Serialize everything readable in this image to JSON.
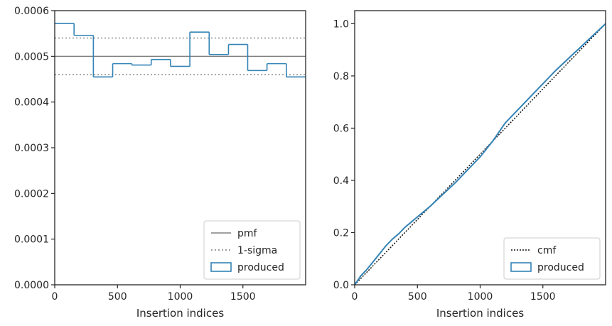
{
  "chart_data": [
    {
      "type": "line",
      "xlabel": "Insertion indices",
      "ylabel": "",
      "xlim": [
        0,
        2000
      ],
      "ylim": [
        0,
        0.0006
      ],
      "xticks": [
        "0",
        "500",
        "1000",
        "1500"
      ],
      "xtick_values": [
        0,
        500,
        1000,
        1500
      ],
      "yticks": [
        "0.0000",
        "0.0001",
        "0.0002",
        "0.0003",
        "0.0004",
        "0.0005",
        "0.0006"
      ],
      "ytick_values": [
        0,
        0.0001,
        0.0002,
        0.0003,
        0.0004,
        0.0005,
        0.0006
      ],
      "grid": false,
      "legend_position": "bottom-right",
      "legend": [
        "pmf",
        "1-sigma",
        "produced"
      ],
      "pmf": 0.0005,
      "sigma_band": [
        0.00046,
        0.00054
      ],
      "histogram": {
        "name": "produced",
        "bin_edges": [
          0,
          154,
          308,
          462,
          615,
          769,
          923,
          1077,
          1231,
          1385,
          1538,
          1692,
          1846,
          2000
        ],
        "values": [
          0.000572,
          0.000546,
          0.000455,
          0.000484,
          0.000481,
          0.000493,
          0.000478,
          0.000553,
          0.000504,
          0.000526,
          0.000469,
          0.000484,
          0.000455
        ]
      },
      "colors": {
        "pmf": "#808080",
        "sigma": "#808080",
        "produced": "#3383b6"
      }
    },
    {
      "type": "line",
      "xlabel": "Insertion indices",
      "ylabel": "",
      "xlim": [
        0,
        2000
      ],
      "ylim": [
        0,
        1.05
      ],
      "xticks": [
        "0",
        "500",
        "1000",
        "1500"
      ],
      "xtick_values": [
        0,
        500,
        1000,
        1500
      ],
      "yticks": [
        "0.0",
        "0.2",
        "0.4",
        "0.6",
        "0.8",
        "1.0"
      ],
      "ytick_values": [
        0,
        0.2,
        0.4,
        0.6,
        0.8,
        1.0
      ],
      "grid": false,
      "legend_position": "bottom-right",
      "legend": [
        "cmf",
        "produced"
      ],
      "cmf": {
        "x": [
          0,
          2000
        ],
        "y": [
          0,
          1.0
        ]
      },
      "produced": {
        "x": [
          0,
          50,
          100,
          150,
          200,
          250,
          300,
          350,
          400,
          450,
          500,
          600,
          700,
          800,
          900,
          1000,
          1100,
          1200,
          1300,
          1400,
          1500,
          1600,
          1700,
          1800,
          1900,
          2000
        ],
        "y": [
          0,
          0.035,
          0.06,
          0.09,
          0.12,
          0.15,
          0.175,
          0.195,
          0.22,
          0.24,
          0.26,
          0.3,
          0.345,
          0.39,
          0.44,
          0.49,
          0.55,
          0.62,
          0.67,
          0.72,
          0.77,
          0.82,
          0.865,
          0.91,
          0.955,
          1.0
        ]
      },
      "colors": {
        "cmf": "#111111",
        "produced": "#3383b6"
      }
    }
  ]
}
